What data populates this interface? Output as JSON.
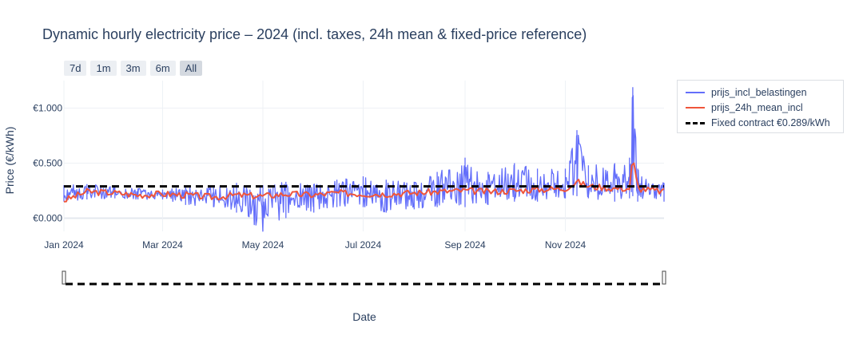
{
  "chart_data": {
    "type": "line",
    "title": "Dynamic hourly electricity price – 2024 (incl. taxes, 24h mean & fixed-price reference)",
    "xlabel": "Date",
    "ylabel": "Price (€/kWh)",
    "x_ticks": [
      "Jan 2024",
      "Mar 2024",
      "May 2024",
      "Jul 2024",
      "Sep 2024",
      "Nov 2024"
    ],
    "x_tick_dates": [
      "2024-01-01",
      "2024-03-01",
      "2024-05-01",
      "2024-07-01",
      "2024-09-01",
      "2024-11-01"
    ],
    "x_range": [
      "2024-01-01",
      "2024-12-31"
    ],
    "y_ticks": [
      {
        "value": 0.0,
        "label": "€0.000"
      },
      {
        "value": 0.5,
        "label": "€0.500"
      },
      {
        "value": 1.0,
        "label": "€1.000"
      }
    ],
    "ylim": [
      -0.12,
      1.25
    ],
    "grid": true,
    "legend_position": "top-right outside",
    "range_selector": [
      "7d",
      "1m",
      "3m",
      "6m",
      "All"
    ],
    "range_selector_active": "All",
    "range_slider": true,
    "series": [
      {
        "name": "prijs_incl_belastingen",
        "color": "#636efa",
        "x": [
          "2024-01-01",
          "2024-01-15",
          "2024-02-01",
          "2024-02-15",
          "2024-03-01",
          "2024-03-15",
          "2024-04-01",
          "2024-04-15",
          "2024-05-01",
          "2024-05-15",
          "2024-06-01",
          "2024-06-15",
          "2024-07-01",
          "2024-07-15",
          "2024-08-01",
          "2024-08-15",
          "2024-09-01",
          "2024-09-15",
          "2024-10-01",
          "2024-10-15",
          "2024-11-01",
          "2024-11-08",
          "2024-11-15",
          "2024-12-01",
          "2024-12-10",
          "2024-12-12",
          "2024-12-15",
          "2024-12-31"
        ],
        "values": [
          0.22,
          0.26,
          0.24,
          0.22,
          0.23,
          0.22,
          0.2,
          0.21,
          0.15,
          0.22,
          0.2,
          0.25,
          0.22,
          0.24,
          0.24,
          0.26,
          0.3,
          0.25,
          0.28,
          0.3,
          0.28,
          0.78,
          0.3,
          0.3,
          0.28,
          1.18,
          0.3,
          0.26
        ],
        "min_band": [
          0.15,
          0.17,
          0.18,
          0.17,
          0.17,
          0.12,
          0.1,
          0.05,
          -0.12,
          0.0,
          0.05,
          0.1,
          0.1,
          0.05,
          0.08,
          0.1,
          0.1,
          0.12,
          0.15,
          0.15,
          0.18,
          0.2,
          0.18,
          0.15,
          0.18,
          0.2,
          0.15,
          0.15
        ],
        "max_band": [
          0.3,
          0.31,
          0.29,
          0.27,
          0.26,
          0.28,
          0.28,
          0.32,
          0.3,
          0.33,
          0.31,
          0.35,
          0.38,
          0.35,
          0.33,
          0.42,
          0.55,
          0.42,
          0.5,
          0.45,
          0.45,
          0.8,
          0.48,
          0.5,
          0.55,
          1.19,
          0.45,
          0.32
        ]
      },
      {
        "name": "prijs_24h_mean_incl",
        "color": "#ef553b",
        "x": [
          "2024-01-01",
          "2024-01-15",
          "2024-02-01",
          "2024-02-15",
          "2024-03-01",
          "2024-03-15",
          "2024-04-01",
          "2024-04-15",
          "2024-05-01",
          "2024-05-15",
          "2024-06-01",
          "2024-06-15",
          "2024-07-01",
          "2024-07-15",
          "2024-08-01",
          "2024-08-15",
          "2024-09-01",
          "2024-09-15",
          "2024-10-01",
          "2024-10-15",
          "2024-11-01",
          "2024-11-08",
          "2024-11-15",
          "2024-12-01",
          "2024-12-10",
          "2024-12-12",
          "2024-12-15",
          "2024-12-31"
        ],
        "values": [
          0.16,
          0.24,
          0.23,
          0.21,
          0.22,
          0.21,
          0.19,
          0.21,
          0.2,
          0.22,
          0.21,
          0.23,
          0.22,
          0.22,
          0.23,
          0.24,
          0.25,
          0.24,
          0.25,
          0.26,
          0.27,
          0.33,
          0.29,
          0.27,
          0.27,
          0.56,
          0.27,
          0.24
        ]
      },
      {
        "name": "Fixed contract €0.289/kWh",
        "color": "#000000",
        "style": "dashed",
        "x": [
          "2024-01-01",
          "2024-12-31"
        ],
        "values": [
          0.289,
          0.289
        ]
      }
    ]
  },
  "legend": {
    "items": [
      {
        "label": "prijs_incl_belastingen",
        "color": "#636efa"
      },
      {
        "label": "prijs_24h_mean_incl",
        "color": "#ef553b"
      },
      {
        "label": "Fixed contract €0.289/kWh",
        "color": "#000000"
      }
    ]
  }
}
